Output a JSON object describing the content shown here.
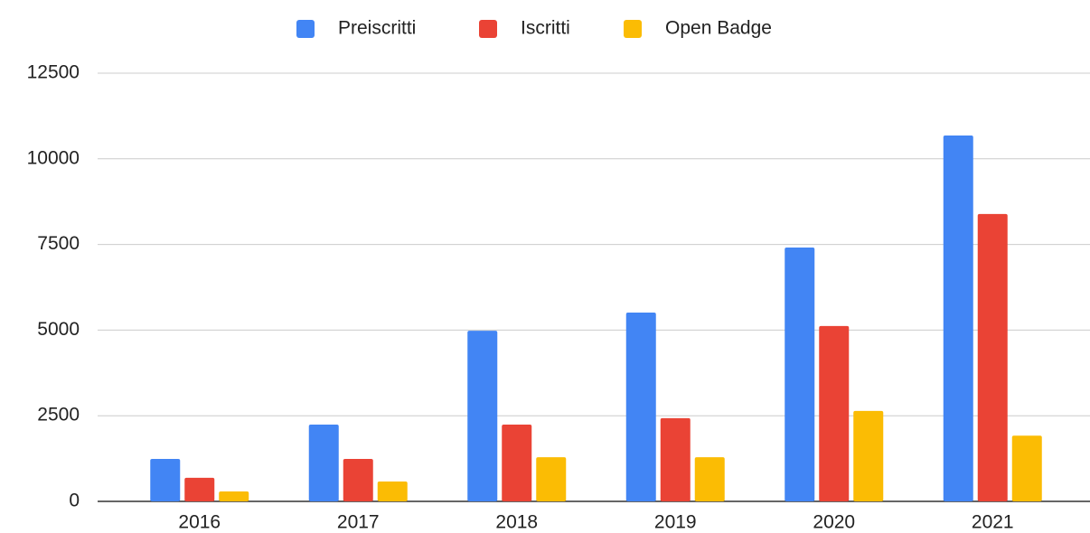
{
  "chart_data": {
    "type": "bar",
    "categories": [
      "2016",
      "2017",
      "2018",
      "2019",
      "2020",
      "2021"
    ],
    "series": [
      {
        "name": "Preiscritti",
        "color": "#4285f4",
        "values": [
          1240,
          2240,
          4980,
          5510,
          7410,
          10680
        ]
      },
      {
        "name": "Iscritti",
        "color": "#ea4335",
        "values": [
          690,
          1240,
          2240,
          2430,
          5120,
          8390
        ]
      },
      {
        "name": "Open Badge",
        "color": "#fbbc04",
        "values": [
          290,
          580,
          1290,
          1290,
          2640,
          1920
        ]
      }
    ],
    "ylim": [
      0,
      12500
    ],
    "yticks": [
      0,
      2500,
      5000,
      7500,
      10000,
      12500
    ],
    "grid": true,
    "legend": "top"
  }
}
